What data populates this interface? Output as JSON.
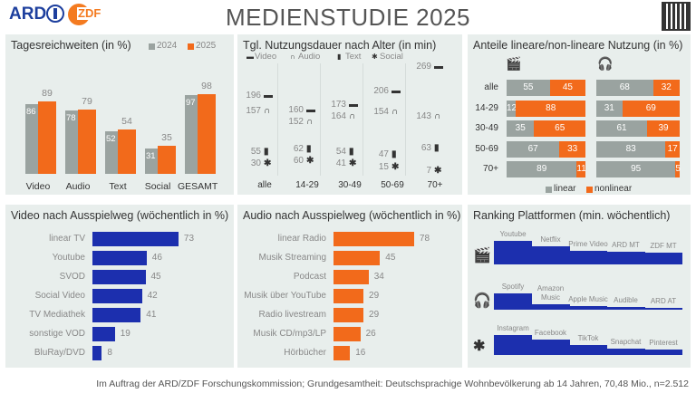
{
  "header": {
    "title": "MEDIENSTUDIE 2025",
    "logo_ard": "ARD",
    "logo_zdf": "ZDF"
  },
  "colors": {
    "gray": "#9aa3a0",
    "orange": "#f26a1b",
    "blue": "#1c2fae",
    "panel": "#e8eeec"
  },
  "footer": "Im Auftrag der ARD/ZDF Forschungskommission; Grundgesamtheit: Deutschsprachige Wohnbevölkerung ab 14 Jahren, 70,48 Mio., n=2.512",
  "chart_data": [
    {
      "type": "bar",
      "title": "Tagesreichweiten (in %)",
      "categories": [
        "Video",
        "Audio",
        "Text",
        "Social",
        "GESAMT"
      ],
      "series": [
        {
          "name": "2024",
          "values": [
            86,
            78,
            52,
            31,
            97
          ]
        },
        {
          "name": "2025",
          "values": [
            89,
            79,
            54,
            35,
            98
          ]
        }
      ],
      "ylim": [
        0,
        100
      ],
      "legend": "top-right"
    },
    {
      "type": "scatter",
      "title": "Tgl. Nutzungsdauer nach Alter (in min)",
      "categories": [
        "alle",
        "14-29",
        "30-49",
        "50-69",
        "70+"
      ],
      "series": [
        {
          "name": "Video",
          "values": [
            196,
            160,
            173,
            206,
            269
          ]
        },
        {
          "name": "Audio",
          "values": [
            157,
            152,
            164,
            154,
            143
          ]
        },
        {
          "name": "Text",
          "values": [
            55,
            62,
            54,
            47,
            63
          ]
        },
        {
          "name": "Social",
          "values": [
            30,
            60,
            41,
            15,
            7
          ]
        }
      ],
      "legend": "top"
    },
    {
      "type": "bar",
      "title": "Anteile lineare/non-lineare Nutzung (in %)",
      "categories": [
        "alle",
        "14-29",
        "30-49",
        "50-69",
        "70+"
      ],
      "groups": [
        {
          "name": "Video",
          "linear": [
            55,
            12,
            35,
            67,
            89
          ],
          "nonlinear": [
            45,
            88,
            65,
            33,
            11
          ]
        },
        {
          "name": "Audio",
          "linear": [
            68,
            31,
            61,
            83,
            95
          ],
          "nonlinear": [
            32,
            69,
            39,
            17,
            5
          ]
        }
      ],
      "legend_labels": [
        "linear",
        "nonlinear"
      ],
      "legend": "bottom"
    },
    {
      "type": "bar",
      "title": "Video nach Ausspielweg  (wöchentlich in %)",
      "categories": [
        "linear TV",
        "Youtube",
        "SVOD",
        "Social Video",
        "TV Mediathek",
        "sonstige VOD",
        "BluRay/DVD"
      ],
      "values": [
        73,
        46,
        45,
        42,
        41,
        19,
        8
      ]
    },
    {
      "type": "bar",
      "title": "Audio nach Ausspielweg  (wöchentlich in %)",
      "categories": [
        "linear Radio",
        "Musik Streaming",
        "Podcast",
        "Musik über YouTube",
        "Radio livestream",
        "Musik CD/mp3/LP",
        "Hörbücher"
      ],
      "values": [
        78,
        45,
        34,
        29,
        29,
        26,
        16
      ]
    },
    {
      "type": "bar",
      "title": "Ranking Plattformen (min. wöchentlich)",
      "rows": [
        {
          "name": "Video",
          "categories": [
            "Youtube",
            "Netflix",
            "Prime Video",
            "ARD MT",
            "ZDF MT"
          ],
          "values": [
            26,
            20,
            15,
            14,
            13
          ]
        },
        {
          "name": "Audio",
          "categories": [
            "Spotify",
            "Amazon Music",
            "Apple Music",
            "Audible",
            "ARD AT"
          ],
          "values": [
            18,
            6,
            4,
            3,
            2
          ]
        },
        {
          "name": "Social",
          "categories": [
            "Instagram",
            "Facebook",
            "TikTok",
            "Snapchat",
            "Pinterest"
          ],
          "values": [
            22,
            17,
            11,
            7,
            6
          ]
        }
      ]
    }
  ]
}
